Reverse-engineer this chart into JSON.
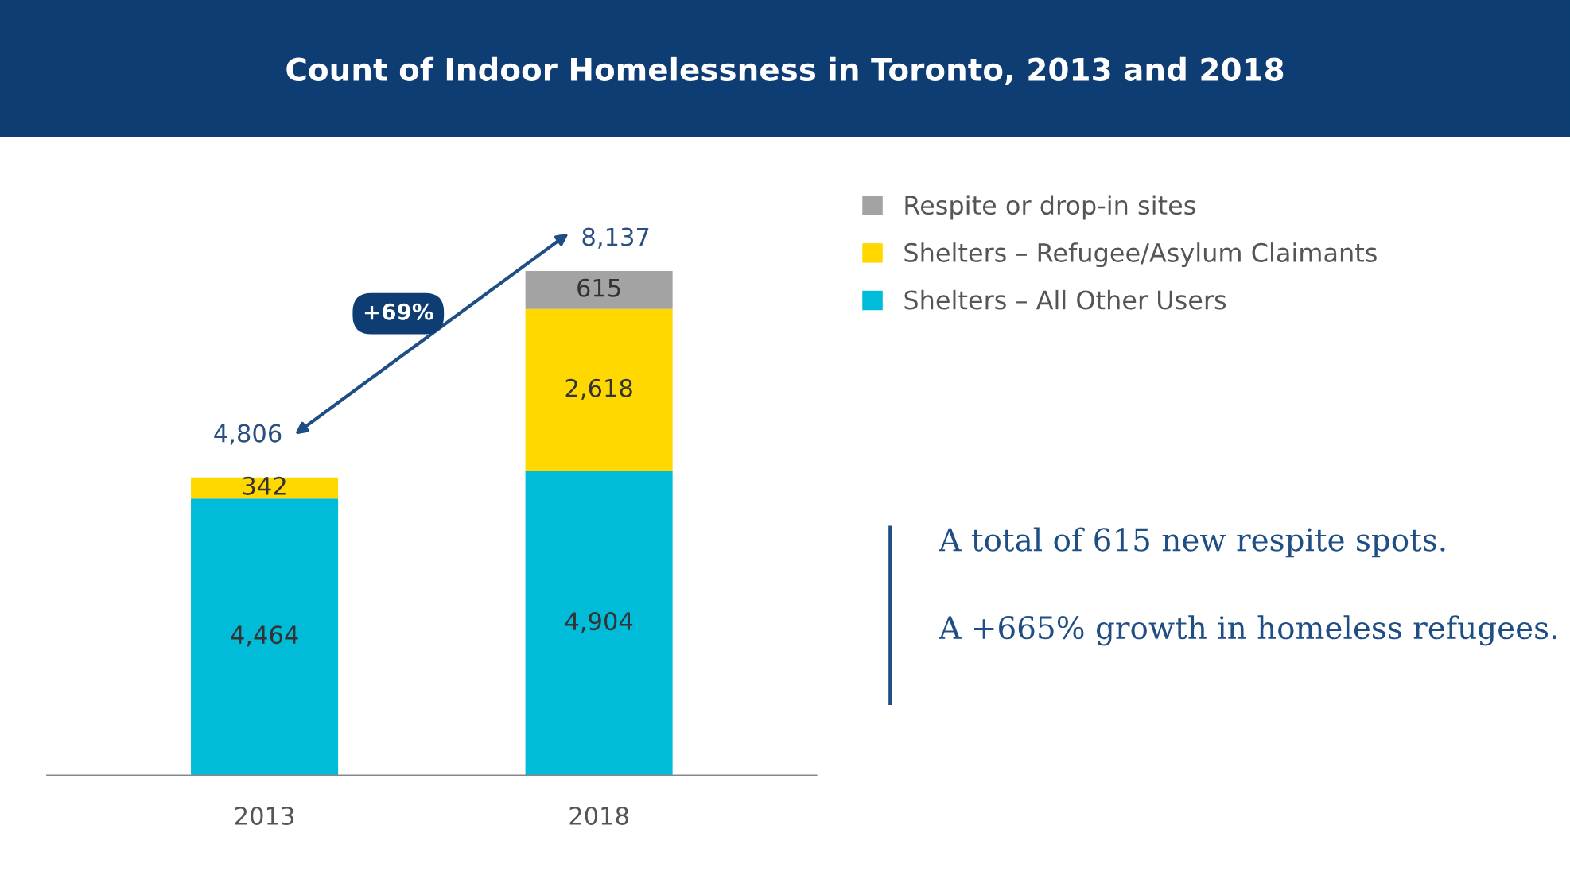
{
  "chart_data": {
    "type": "bar",
    "title": "Count of Indoor Homelessness in Toronto, 2013 and 2018",
    "categories": [
      "2013",
      "2018"
    ],
    "stacked": true,
    "legend": "right",
    "grid": false,
    "series": [
      {
        "name": "Shelters – All Other Users",
        "color": "#00bcd9",
        "values": [
          4464,
          4904
        ],
        "value_labels": [
          "4,464",
          "4,904"
        ]
      },
      {
        "name": "Shelters – Refugee/Asylum Claimants",
        "color": "#ffd800",
        "values": [
          342,
          2618
        ],
        "value_labels": [
          "342",
          "2,618"
        ]
      },
      {
        "name": "Respite or drop-in sites",
        "color": "#a3a3a3",
        "values": [
          null,
          615
        ],
        "value_labels": [
          null,
          "615"
        ]
      }
    ],
    "totals": [
      "4,806",
      "8,137"
    ],
    "annotations": [
      "+69%",
      "A total of 615 new respite spots.",
      "A +665% growth in homeless refugees."
    ]
  }
}
